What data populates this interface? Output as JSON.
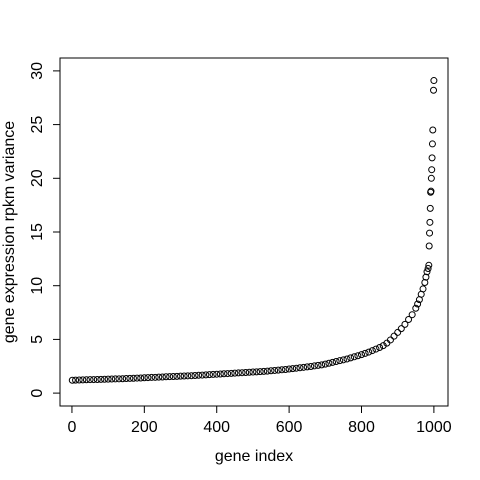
{
  "chart_data": {
    "type": "scatter",
    "x_label": "gene index",
    "y_label": "gene expression rpkm variance",
    "xlim": [
      -33,
      1039
    ],
    "ylim": [
      -1.2,
      31.2
    ],
    "xticks": [
      0,
      200,
      400,
      600,
      800,
      1000
    ],
    "yticks": [
      0,
      5,
      10,
      15,
      20,
      25,
      30
    ],
    "color": "#000000",
    "x": [
      1,
      10,
      20,
      30,
      40,
      50,
      60,
      70,
      80,
      90,
      100,
      110,
      120,
      130,
      140,
      150,
      160,
      170,
      180,
      190,
      200,
      210,
      220,
      230,
      240,
      250,
      260,
      270,
      280,
      290,
      300,
      310,
      320,
      330,
      340,
      350,
      360,
      370,
      380,
      390,
      400,
      410,
      420,
      430,
      440,
      450,
      460,
      470,
      480,
      490,
      500,
      510,
      520,
      530,
      540,
      550,
      560,
      570,
      580,
      590,
      600,
      610,
      620,
      630,
      640,
      650,
      660,
      670,
      680,
      690,
      700,
      710,
      720,
      730,
      740,
      750,
      760,
      770,
      780,
      790,
      800,
      810,
      820,
      830,
      840,
      850,
      860,
      870,
      880,
      890,
      900,
      910,
      920,
      930,
      940,
      950,
      955,
      960,
      965,
      970,
      975,
      978,
      981,
      984,
      986,
      987,
      988,
      989,
      990,
      991,
      992,
      993,
      994,
      995,
      996,
      997,
      999,
      1000
    ],
    "values": [
      1.2,
      1.21,
      1.22,
      1.23,
      1.24,
      1.25,
      1.26,
      1.27,
      1.28,
      1.29,
      1.3,
      1.31,
      1.32,
      1.33,
      1.34,
      1.36,
      1.37,
      1.38,
      1.4,
      1.41,
      1.43,
      1.44,
      1.46,
      1.47,
      1.49,
      1.5,
      1.52,
      1.53,
      1.55,
      1.56,
      1.58,
      1.59,
      1.61,
      1.62,
      1.64,
      1.66,
      1.68,
      1.7,
      1.72,
      1.74,
      1.76,
      1.78,
      1.8,
      1.82,
      1.84,
      1.86,
      1.88,
      1.9,
      1.92,
      1.94,
      1.96,
      1.98,
      2.0,
      2.02,
      2.05,
      2.08,
      2.11,
      2.14,
      2.17,
      2.2,
      2.24,
      2.28,
      2.32,
      2.36,
      2.4,
      2.44,
      2.48,
      2.53,
      2.58,
      2.63,
      2.7,
      2.78,
      2.86,
      2.94,
      3.02,
      3.1,
      3.18,
      3.28,
      3.38,
      3.48,
      3.58,
      3.7,
      3.82,
      3.96,
      4.1,
      4.25,
      4.42,
      4.65,
      4.95,
      5.3,
      5.65,
      6.0,
      6.4,
      6.85,
      7.3,
      7.9,
      8.3,
      8.7,
      9.2,
      9.7,
      10.3,
      10.8,
      11.3,
      11.6,
      11.9,
      13.7,
      14.9,
      15.9,
      17.2,
      18.7,
      18.8,
      20.0,
      20.8,
      21.9,
      23.2,
      24.5,
      28.2,
      29.1
    ]
  }
}
